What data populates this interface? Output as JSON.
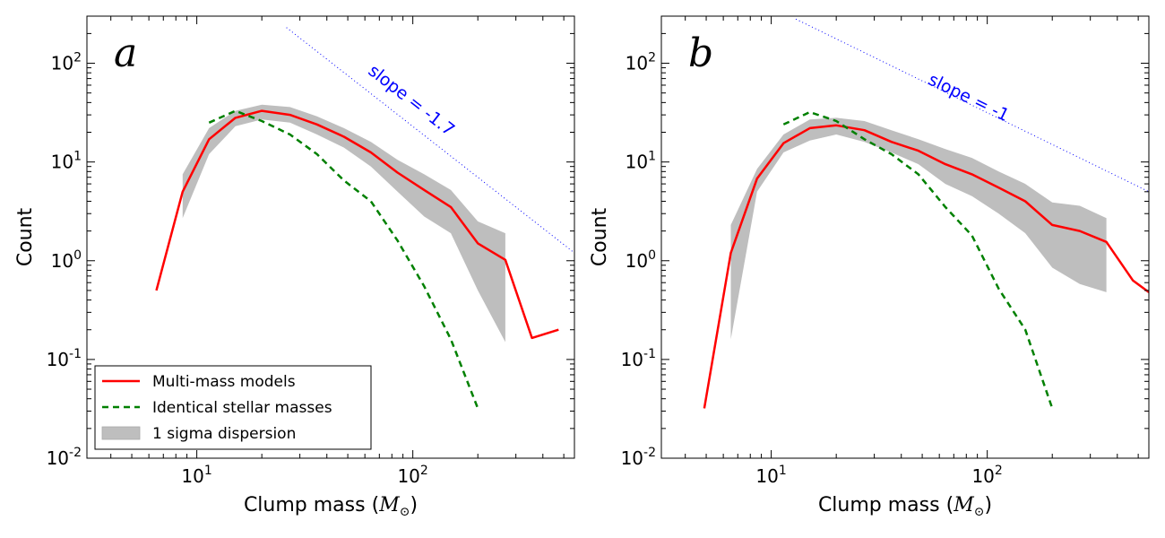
{
  "chart_data": [
    {
      "type": "line",
      "panel_label": "a",
      "xlabel": "Clump mass",
      "xlabel_unit": "M",
      "xlabel_unit_sub": "⊙",
      "ylabel": "Count",
      "xscale": "log",
      "yscale": "log",
      "xlim": [
        3.1,
        560
      ],
      "ylim": [
        0.01,
        300
      ],
      "x_ticks": [
        {
          "value": 10,
          "base": "10",
          "exp": "1"
        },
        {
          "value": 100,
          "base": "10",
          "exp": "2"
        }
      ],
      "y_ticks": [
        {
          "value": 0.01,
          "base": "10",
          "exp": "-2"
        },
        {
          "value": 0.1,
          "base": "10",
          "exp": "-1"
        },
        {
          "value": 1,
          "base": "10",
          "exp": "0"
        },
        {
          "value": 10,
          "base": "10",
          "exp": "1"
        },
        {
          "value": 100,
          "base": "10",
          "exp": "2"
        }
      ],
      "grid": false,
      "legend_position": "lower-left",
      "series": [
        {
          "name": "Multi-mass models",
          "style": "solid",
          "color": "#ff0000",
          "x": [
            6.5,
            8.6,
            11.4,
            15.1,
            20,
            27,
            36,
            48,
            64,
            85,
            113,
            150,
            200,
            268,
            356,
            473
          ],
          "y": [
            0.5,
            5.0,
            17.0,
            28.0,
            33.0,
            30.0,
            24.0,
            18.0,
            12.5,
            7.8,
            5.2,
            3.5,
            1.5,
            1.02,
            0.165,
            0.2
          ]
        },
        {
          "name": "Identical stellar masses",
          "style": "dashed",
          "color": "#008000",
          "x": [
            11.4,
            15.1,
            20,
            27,
            36,
            48,
            64,
            85,
            113,
            150,
            200
          ],
          "y": [
            25.0,
            33.0,
            26.0,
            19.0,
            12.0,
            6.5,
            4.0,
            1.6,
            0.55,
            0.16,
            0.032
          ]
        }
      ],
      "band": {
        "name": "1 sigma dispersion",
        "color": "#bebebe",
        "x": [
          8.6,
          11.4,
          15.1,
          20,
          27,
          36,
          48,
          64,
          85,
          113,
          150,
          200,
          268
        ],
        "lower": [
          2.7,
          12.0,
          23.0,
          27.0,
          25.0,
          19.0,
          14.0,
          9.0,
          5.0,
          2.8,
          1.9,
          0.5,
          0.15
        ],
        "upper": [
          7.5,
          22.0,
          33.0,
          38.0,
          36.0,
          29.0,
          22.0,
          16.0,
          10.5,
          7.5,
          5.2,
          2.5,
          1.9
        ]
      },
      "reference_line": {
        "label": "slope = -1.7",
        "slope": -1.7,
        "color": "#0000ff",
        "style": "dotted",
        "x": [
          26,
          560
        ],
        "y": [
          230,
          1.2
        ]
      },
      "legend": [
        {
          "label": "Multi-mass models",
          "kind": "line",
          "style": "solid",
          "color": "#ff0000"
        },
        {
          "label": "Identical stellar masses",
          "kind": "line",
          "style": "dashed",
          "color": "#008000"
        },
        {
          "label": "1 sigma dispersion",
          "kind": "patch",
          "color": "#bebebe"
        }
      ]
    },
    {
      "type": "line",
      "panel_label": "b",
      "xlabel": "Clump mass",
      "xlabel_unit": "M",
      "xlabel_unit_sub": "⊙",
      "ylabel": "Count",
      "xscale": "log",
      "yscale": "log",
      "xlim": [
        3.1,
        560
      ],
      "ylim": [
        0.01,
        300
      ],
      "x_ticks": [
        {
          "value": 10,
          "base": "10",
          "exp": "1"
        },
        {
          "value": 100,
          "base": "10",
          "exp": "2"
        }
      ],
      "y_ticks": [
        {
          "value": 0.01,
          "base": "10",
          "exp": "-2"
        },
        {
          "value": 0.1,
          "base": "10",
          "exp": "-1"
        },
        {
          "value": 1,
          "base": "10",
          "exp": "0"
        },
        {
          "value": 10,
          "base": "10",
          "exp": "1"
        },
        {
          "value": 100,
          "base": "10",
          "exp": "2"
        }
      ],
      "grid": false,
      "series": [
        {
          "name": "Multi-mass models",
          "style": "solid",
          "color": "#ff0000",
          "x": [
            4.9,
            6.5,
            8.6,
            11.4,
            15.1,
            20,
            27,
            36,
            48,
            64,
            85,
            113,
            150,
            200,
            268,
            356,
            473,
            560
          ],
          "y": [
            0.032,
            1.2,
            6.8,
            15.5,
            22.0,
            23.5,
            21.0,
            16.0,
            13.0,
            9.5,
            7.5,
            5.5,
            4.0,
            2.3,
            2.0,
            1.55,
            0.63,
            0.48
          ]
        },
        {
          "name": "Identical stellar masses",
          "style": "dashed",
          "color": "#008000",
          "x": [
            11.4,
            15.1,
            20,
            27,
            36,
            48,
            64,
            85,
            113,
            150,
            200
          ],
          "y": [
            24.0,
            32.0,
            26.0,
            17.0,
            12.0,
            7.5,
            3.5,
            1.8,
            0.52,
            0.2,
            0.032
          ]
        }
      ],
      "band": {
        "name": "1 sigma dispersion",
        "color": "#bebebe",
        "x": [
          6.5,
          8.6,
          11.4,
          15.1,
          20,
          27,
          36,
          48,
          64,
          85,
          113,
          150,
          200,
          268,
          356
        ],
        "lower": [
          0.16,
          5.0,
          12.5,
          16.5,
          19.0,
          16.0,
          12.5,
          9.5,
          6.0,
          4.5,
          3.0,
          1.9,
          0.85,
          0.58,
          0.48
        ],
        "upper": [
          2.3,
          8.5,
          19.0,
          27.0,
          28.0,
          26.0,
          21.0,
          17.0,
          13.5,
          11.0,
          8.0,
          6.0,
          3.9,
          3.6,
          2.7
        ]
      },
      "reference_line": {
        "label": "slope = -1",
        "slope": -1,
        "color": "#0000ff",
        "style": "dotted",
        "x": [
          13,
          560
        ],
        "y": [
          280,
          5.0
        ]
      }
    }
  ]
}
